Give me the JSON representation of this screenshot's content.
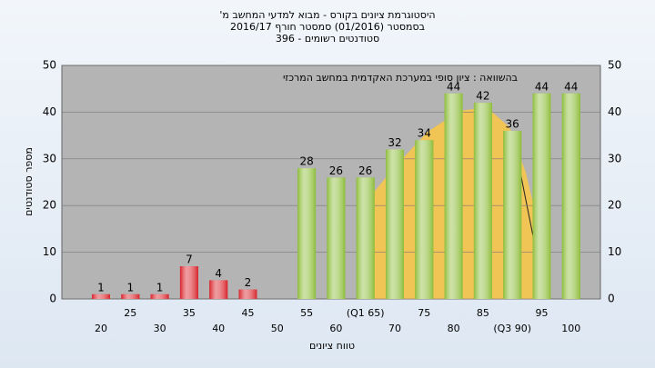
{
  "chart_data": {
    "type": "bar",
    "title": "היסטוגרמת ציונים בקורס - מבוא למדעי המחשב מ'",
    "subtitle": "בסמסטר (01/2016) סמסטר חורף 2016/17",
    "subtitle2": "סטודנטים רשומים - 396",
    "annotation": "בהשוואה : ציון סופי במערכת האקדמית במחשב המרכזי",
    "x_label": "טווח ציונים",
    "y_label": "מספר סטודנטים",
    "categories": [
      "20",
      "25",
      "30",
      "35",
      "40",
      "45",
      "50",
      "55",
      "60",
      "(Q1 65)",
      "70",
      "75",
      "80",
      "85",
      "(Q3 90)",
      "95",
      "100"
    ],
    "values": [
      1,
      1,
      1,
      7,
      4,
      2,
      0,
      28,
      26,
      26,
      32,
      34,
      44,
      42,
      36,
      44,
      44
    ],
    "bar_colors": [
      "#d8232a",
      "#d8232a",
      "#d8232a",
      "#d8232a",
      "#d8232a",
      "#d8232a",
      "#d8232a",
      "#8dbd3a",
      "#8dbd3a",
      "#8dbd3a",
      "#8dbd3a",
      "#8dbd3a",
      "#8dbd3a",
      "#8dbd3a",
      "#8dbd3a",
      "#8dbd3a",
      "#8dbd3a"
    ],
    "ylim": [
      0,
      50
    ],
    "yticks": [
      0,
      10,
      20,
      30,
      40,
      50
    ],
    "grid": true
  }
}
